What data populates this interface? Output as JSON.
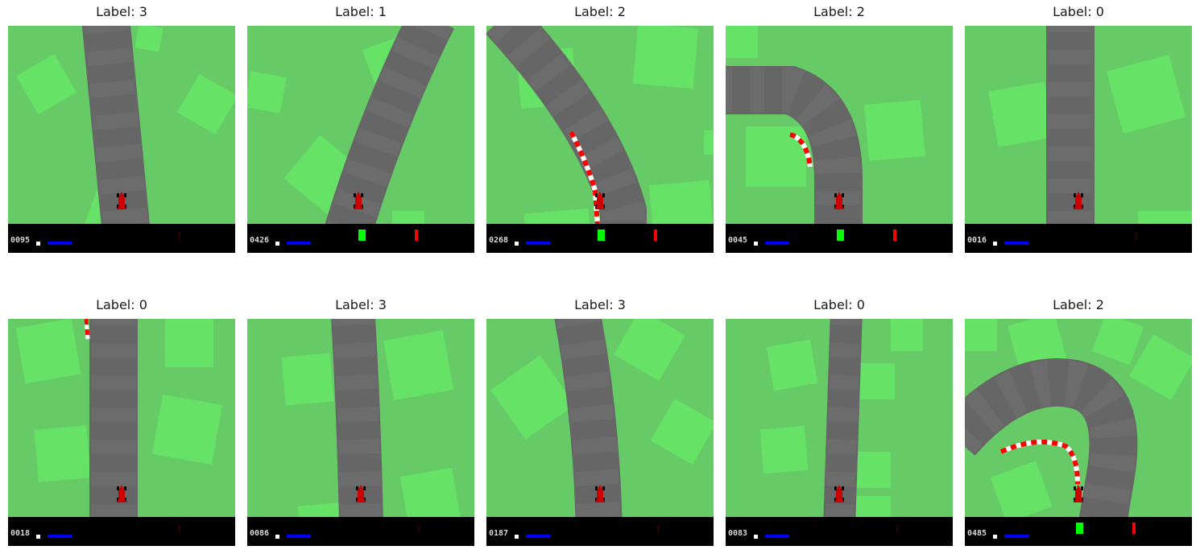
{
  "figure": {
    "panels": [
      {
        "title": "Label: 3",
        "score": "0095",
        "scene": "straight-slight-lean",
        "shows_green": false,
        "shows_red": false
      },
      {
        "title": "Label: 1",
        "score": "0426",
        "scene": "diagonal-right",
        "shows_green": true,
        "shows_red": true
      },
      {
        "title": "Label: 2",
        "score": "0268",
        "scene": "curve-right-kerb",
        "shows_green": true,
        "shows_red": true
      },
      {
        "title": "Label: 2",
        "score": "0045",
        "scene": "turn-left-kerb",
        "shows_green": true,
        "shows_red": true
      },
      {
        "title": "Label: 0",
        "score": "0016",
        "scene": "straight",
        "shows_green": false,
        "shows_red": false
      },
      {
        "title": "Label: 0",
        "score": "0018",
        "scene": "straight-kerb-top",
        "shows_green": false,
        "shows_red": false
      },
      {
        "title": "Label: 3",
        "score": "0086",
        "scene": "straight",
        "shows_green": false,
        "shows_red": false
      },
      {
        "title": "Label: 3",
        "score": "0187",
        "scene": "lean-left",
        "shows_green": false,
        "shows_red": false
      },
      {
        "title": "Label: 0",
        "score": "0083",
        "scene": "straight-narrow",
        "shows_green": false,
        "shows_red": false
      },
      {
        "title": "Label: 2",
        "score": "0485",
        "scene": "arc-kerb",
        "shows_green": true,
        "shows_red": true
      }
    ]
  },
  "colors": {
    "grass": "#66cb66",
    "grass_tile": "#66e366",
    "road": "#666666",
    "car": "#cc0000",
    "hud": "#000000",
    "gauge_blue": "#0000ff",
    "gauge_green": "#00ff00",
    "gauge_red": "#ff0000",
    "kerb_red": "#ff0000",
    "kerb_white": "#ffffff"
  },
  "icons": {
    "car": "race-car-icon",
    "speed": "speed-gauge-icon"
  }
}
